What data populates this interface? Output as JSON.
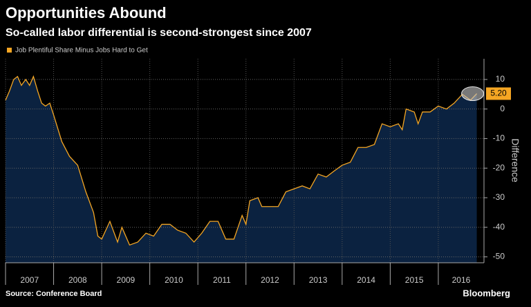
{
  "chart_data": {
    "type": "area",
    "title": "Opportunities Abound",
    "subtitle": "So-called labor differential is second-strongest since 2007",
    "y_label": "Difference",
    "source": "Source: Conference Board",
    "brand": "Bloomberg",
    "x": [
      2007.0,
      2007.08,
      2007.17,
      2007.25,
      2007.33,
      2007.42,
      2007.5,
      2007.58,
      2007.67,
      2007.75,
      2007.83,
      2007.92,
      2008.0,
      2008.17,
      2008.33,
      2008.5,
      2008.67,
      2008.83,
      2008.92,
      2009.0,
      2009.17,
      2009.33,
      2009.42,
      2009.58,
      2009.75,
      2009.92,
      2010.08,
      2010.25,
      2010.42,
      2010.58,
      2010.75,
      2010.92,
      2011.08,
      2011.25,
      2011.42,
      2011.58,
      2011.75,
      2011.92,
      2012.0,
      2012.08,
      2012.25,
      2012.33,
      2012.5,
      2012.67,
      2012.83,
      2013.0,
      2013.17,
      2013.33,
      2013.5,
      2013.67,
      2013.83,
      2014.0,
      2014.17,
      2014.33,
      2014.5,
      2014.67,
      2014.83,
      2015.0,
      2015.17,
      2015.25,
      2015.33,
      2015.5,
      2015.58,
      2015.67,
      2015.83,
      2016.0,
      2016.17,
      2016.33,
      2016.5,
      2016.67,
      2016.8
    ],
    "series": [
      {
        "name": "Job Plentiful Share Minus Jobs Hard to Get",
        "color": "#f5a623",
        "fill": "#0b2240",
        "values": [
          3,
          6,
          10,
          11,
          8,
          10,
          8,
          11,
          6,
          2,
          1,
          2,
          -2,
          -11,
          -16,
          -19,
          -28,
          -35,
          -43,
          -44,
          -38,
          -45,
          -40,
          -46,
          -45,
          -42,
          -43,
          -39,
          -39,
          -41,
          -42,
          -45,
          -42,
          -38,
          -38,
          -44,
          -44,
          -36,
          -39,
          -31,
          -30,
          -33,
          -33,
          -33,
          -28,
          -27,
          -26,
          -27,
          -22,
          -23,
          -21,
          -19,
          -18,
          -13,
          -13,
          -12,
          -5,
          -6,
          -5,
          -7,
          0,
          -1,
          -5,
          -1,
          -1,
          1,
          0,
          2,
          5,
          3,
          5.2
        ],
        "value_labels": [
          null,
          null,
          null,
          null,
          null,
          null,
          null,
          null,
          null,
          null,
          null,
          null,
          null,
          null,
          null,
          null,
          null,
          null,
          null,
          null,
          null,
          null,
          null,
          null,
          null,
          null,
          null,
          null,
          null,
          null,
          null,
          null,
          null,
          null,
          null,
          null,
          null,
          null,
          null,
          null,
          null,
          null,
          null,
          null,
          null,
          null,
          null,
          null,
          null,
          null,
          null,
          null,
          null,
          null,
          null,
          null,
          null,
          null,
          null,
          null,
          null,
          null,
          null,
          null,
          null,
          null,
          null,
          null,
          null,
          null,
          "5.20"
        ]
      }
    ],
    "xlim": [
      2007,
      2016.95
    ],
    "xticks": [
      2007,
      2008,
      2009,
      2010,
      2011,
      2012,
      2013,
      2014,
      2015,
      2016
    ],
    "ylim": [
      -52,
      17
    ],
    "yticks": [
      -50,
      -40,
      -30,
      -20,
      -10,
      0,
      10
    ],
    "grid": true
  }
}
